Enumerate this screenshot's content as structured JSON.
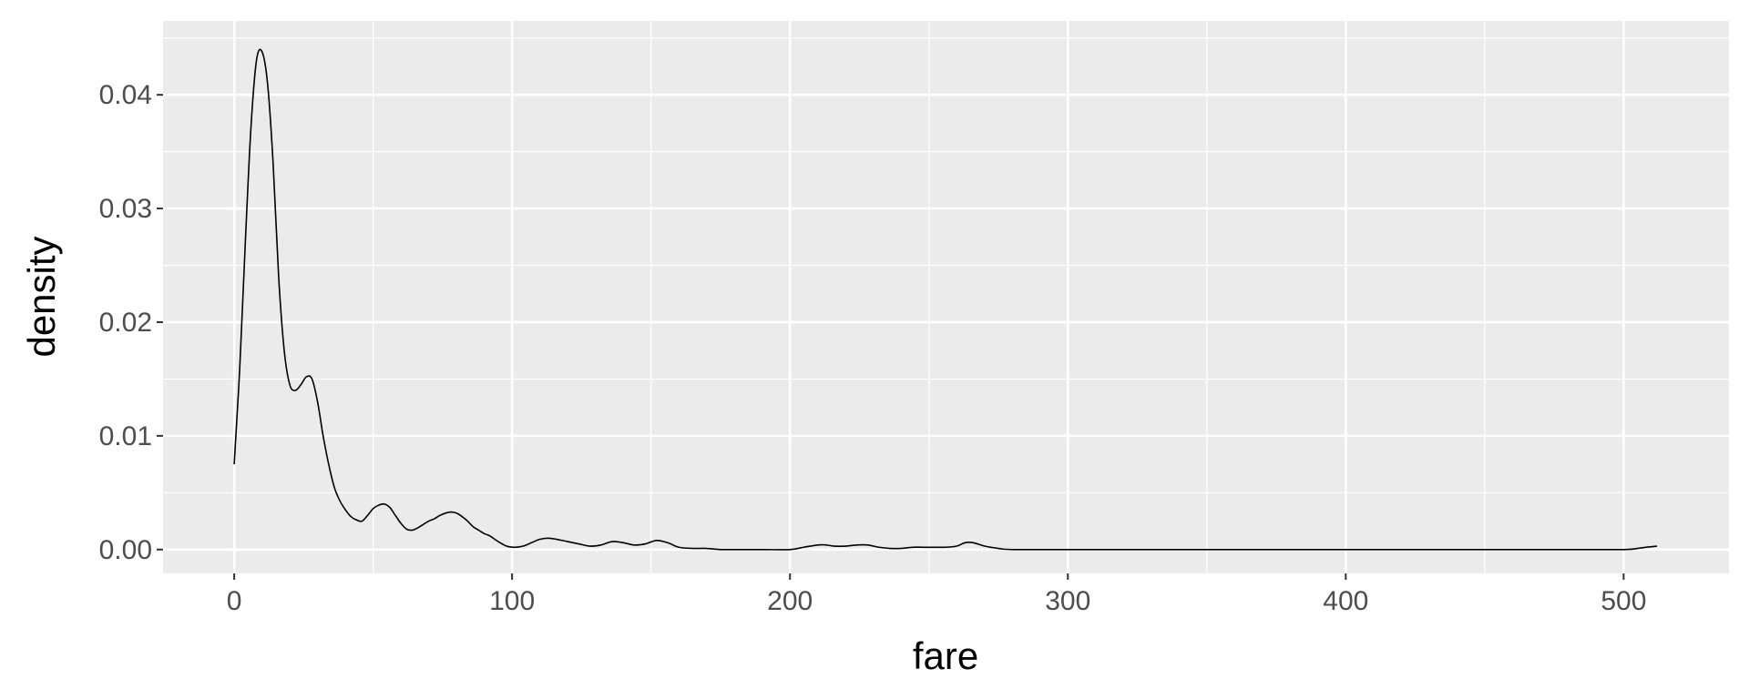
{
  "chart_data": {
    "type": "line",
    "title": "",
    "xlabel": "fare",
    "ylabel": "density",
    "xlim": [
      -25.6,
      537.9
    ],
    "ylim": [
      -0.0021,
      0.0465
    ],
    "x_ticks": [
      0,
      100,
      200,
      300,
      400,
      500
    ],
    "x_tick_labels": [
      "0",
      "100",
      "200",
      "300",
      "400",
      "500"
    ],
    "y_ticks": [
      0,
      0.01,
      0.02,
      0.03,
      0.04
    ],
    "y_tick_labels": [
      "0.00",
      "0.01",
      "0.02",
      "0.03",
      "0.04"
    ],
    "grid": true,
    "legend": "none",
    "colors": {
      "panel": "#ebebeb",
      "grid": "#ffffff",
      "line": "#000000",
      "tick_text": "#4d4d4d",
      "tick_mark": "#333333"
    },
    "series": [
      {
        "x": [
          0,
          2,
          4,
          6,
          8,
          10,
          12,
          14,
          16,
          18,
          20,
          22,
          24,
          26,
          28,
          30,
          32,
          34,
          36,
          38,
          40,
          42,
          44,
          46,
          48,
          50,
          52,
          54,
          56,
          58,
          60,
          62,
          64,
          66,
          68,
          70,
          72,
          74,
          76,
          78,
          80,
          82,
          84,
          86,
          88,
          90,
          92,
          95,
          98,
          101,
          104,
          107,
          110,
          113,
          116,
          120,
          124,
          128,
          132,
          136,
          140,
          144,
          148,
          152,
          156,
          160,
          165,
          170,
          175,
          180,
          190,
          200,
          205,
          210,
          213,
          216,
          220,
          224,
          228,
          232,
          236,
          240,
          244,
          248,
          252,
          256,
          260,
          263,
          266,
          270,
          275,
          280,
          300,
          350,
          400,
          450,
          480,
          500,
          505,
          508,
          512
        ],
        "y": [
          0.0075,
          0.016,
          0.027,
          0.037,
          0.043,
          0.0438,
          0.041,
          0.034,
          0.024,
          0.0175,
          0.0145,
          0.014,
          0.0145,
          0.0152,
          0.015,
          0.013,
          0.01,
          0.0075,
          0.0055,
          0.0043,
          0.0035,
          0.0029,
          0.0026,
          0.0025,
          0.003,
          0.0036,
          0.0039,
          0.004,
          0.0037,
          0.003,
          0.0023,
          0.0018,
          0.0017,
          0.0019,
          0.0022,
          0.0025,
          0.0027,
          0.003,
          0.0032,
          0.0033,
          0.0032,
          0.0029,
          0.0025,
          0.002,
          0.0017,
          0.0014,
          0.0012,
          0.0007,
          0.0003,
          0.0002,
          0.0003,
          0.0006,
          0.0009,
          0.001,
          0.0009,
          0.0007,
          0.0005,
          0.0003,
          0.0004,
          0.0007,
          0.0006,
          0.0004,
          0.0005,
          0.0008,
          0.0006,
          0.0002,
          0.0001,
          0.0001,
          0.0,
          0.0,
          0.0,
          0.0,
          0.0002,
          0.0004,
          0.0004,
          0.0003,
          0.0003,
          0.0004,
          0.0004,
          0.0002,
          0.0001,
          0.0001,
          0.0002,
          0.0002,
          0.0002,
          0.0002,
          0.0003,
          0.0006,
          0.0006,
          0.0003,
          0.0001,
          0.0,
          0.0,
          0.0,
          0.0,
          0.0,
          0.0,
          0.0,
          0.0001,
          0.0002,
          0.0003
        ]
      }
    ]
  }
}
